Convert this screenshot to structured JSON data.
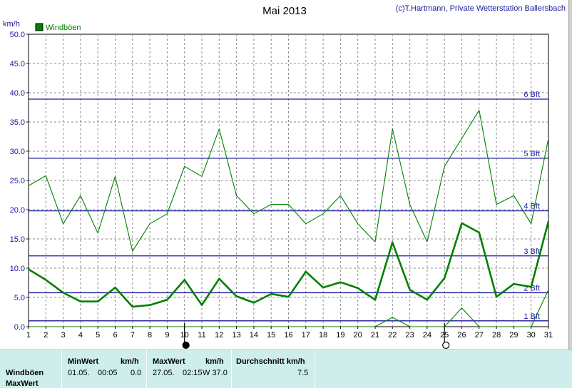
{
  "chart_data": {
    "type": "line",
    "title": "Mai 2013",
    "credit": "(c)T.Hartmann, Private Wetterstation Ballersbach",
    "ylabel": "km/h",
    "ylim": [
      0,
      50
    ],
    "yticks": [
      "0.0",
      "5.0",
      "10.0",
      "15.0",
      "20.0",
      "25.0",
      "30.0",
      "35.0",
      "40.0",
      "45.0",
      "50.0"
    ],
    "x": [
      1,
      2,
      3,
      4,
      5,
      6,
      7,
      8,
      9,
      10,
      11,
      12,
      13,
      14,
      15,
      16,
      17,
      18,
      19,
      20,
      21,
      22,
      23,
      24,
      25,
      26,
      27,
      28,
      29,
      30,
      31
    ],
    "xticks": [
      "1",
      "2",
      "3",
      "4",
      "5",
      "6",
      "7",
      "8",
      "9",
      "10",
      "11",
      "12",
      "13",
      "14",
      "15",
      "16",
      "17",
      "18",
      "19",
      "20",
      "21",
      "22",
      "23",
      "24",
      "25",
      "26",
      "27",
      "28",
      "29",
      "30",
      "31"
    ],
    "grid": true,
    "legend": "top-left",
    "series": [
      {
        "name": "Windböen",
        "role": "daily mean gusts",
        "color": "#008000",
        "values": [
          9.8,
          8.0,
          5.8,
          4.3,
          4.3,
          6.7,
          3.4,
          3.7,
          4.6,
          8.0,
          3.7,
          8.2,
          5.2,
          4.1,
          5.6,
          5.1,
          9.4,
          6.7,
          7.6,
          6.6,
          4.6,
          14.4,
          6.3,
          4.6,
          8.3,
          17.7,
          16.1,
          5.1,
          7.3,
          6.8,
          18.0
        ]
      },
      {
        "role": "daily max gusts",
        "color": "#008000",
        "values": [
          24.1,
          25.8,
          17.6,
          22.4,
          16.0,
          25.7,
          12.9,
          17.6,
          19.3,
          27.4,
          25.7,
          33.8,
          22.4,
          19.3,
          20.9,
          20.9,
          17.6,
          19.3,
          22.4,
          17.6,
          14.5,
          33.8,
          20.9,
          14.5,
          27.4,
          32.2,
          37.0,
          20.9,
          22.4,
          17.6,
          32.2
        ]
      },
      {
        "role": "daily min gusts",
        "color": "#008000",
        "values": [
          0,
          0,
          0,
          0,
          0,
          0,
          0,
          0,
          0,
          0,
          0,
          0,
          0,
          0,
          0,
          0,
          0,
          0,
          0,
          0,
          0,
          1.6,
          0,
          0,
          0,
          3.2,
          0,
          0,
          0,
          0,
          6.3
        ]
      }
    ],
    "reference_lines": [
      {
        "label": "1 Bft",
        "value": 1.0
      },
      {
        "label": "2 Bft",
        "value": 5.8
      },
      {
        "label": "3 Bft",
        "value": 12.1
      },
      {
        "label": "4 Bft",
        "value": 19.8
      },
      {
        "label": "5 Bft",
        "value": 28.8
      },
      {
        "label": "6 Bft",
        "value": 38.9
      }
    ],
    "moon_markers": [
      {
        "day": 10,
        "phase": "new-moon"
      },
      {
        "day": 25,
        "phase": "full-moon"
      }
    ]
  },
  "stats": {
    "rows": [
      "Windböen",
      "MaxWert"
    ],
    "min_header": "MinWert",
    "min_unit": "km/h",
    "min_date": "01.05.",
    "min_time": "00:05",
    "min_value": "0.0",
    "max_header": "MaxWert",
    "max_unit": "km/h",
    "max_date": "27.05.",
    "max_time": "02:15",
    "max_value": "W 37.0",
    "avg_header": "Durchschnitt km/h",
    "avg_value": "7.5"
  }
}
